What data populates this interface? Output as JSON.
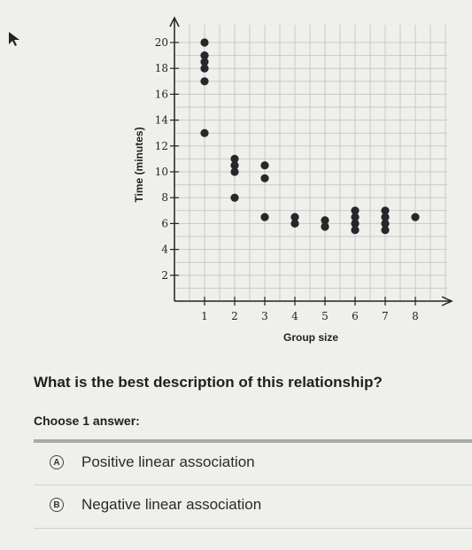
{
  "question": "What is the best description of this relationship?",
  "prompt": "Choose 1 answer:",
  "choices": [
    {
      "letter": "A",
      "label": "Positive linear association"
    },
    {
      "letter": "B",
      "label": "Negative linear association"
    }
  ],
  "chart_data": {
    "type": "scatter",
    "xlabel": "Group size",
    "ylabel": "Time (minutes)",
    "x_ticks": [
      1,
      2,
      3,
      4,
      5,
      6,
      7,
      8
    ],
    "y_ticks": [
      2,
      4,
      6,
      8,
      10,
      12,
      14,
      16,
      18,
      20
    ],
    "xlim": [
      0,
      8.5
    ],
    "ylim": [
      0,
      20
    ],
    "grid": true,
    "points": [
      {
        "x": 1,
        "y": 20
      },
      {
        "x": 1,
        "y": 19
      },
      {
        "x": 1,
        "y": 18.5
      },
      {
        "x": 1,
        "y": 18
      },
      {
        "x": 1,
        "y": 17
      },
      {
        "x": 1,
        "y": 13
      },
      {
        "x": 2,
        "y": 11
      },
      {
        "x": 2,
        "y": 10.5
      },
      {
        "x": 2,
        "y": 10
      },
      {
        "x": 2,
        "y": 8
      },
      {
        "x": 3,
        "y": 10.5
      },
      {
        "x": 3,
        "y": 9.5
      },
      {
        "x": 3,
        "y": 6.5
      },
      {
        "x": 4,
        "y": 6.5
      },
      {
        "x": 4,
        "y": 6
      },
      {
        "x": 5,
        "y": 6.25
      },
      {
        "x": 5,
        "y": 5.75
      },
      {
        "x": 6,
        "y": 7
      },
      {
        "x": 6,
        "y": 6.5
      },
      {
        "x": 6,
        "y": 6
      },
      {
        "x": 6,
        "y": 5.5
      },
      {
        "x": 7,
        "y": 7
      },
      {
        "x": 7,
        "y": 6.5
      },
      {
        "x": 7,
        "y": 6
      },
      {
        "x": 7,
        "y": 5.5
      },
      {
        "x": 8,
        "y": 6.5
      }
    ]
  }
}
